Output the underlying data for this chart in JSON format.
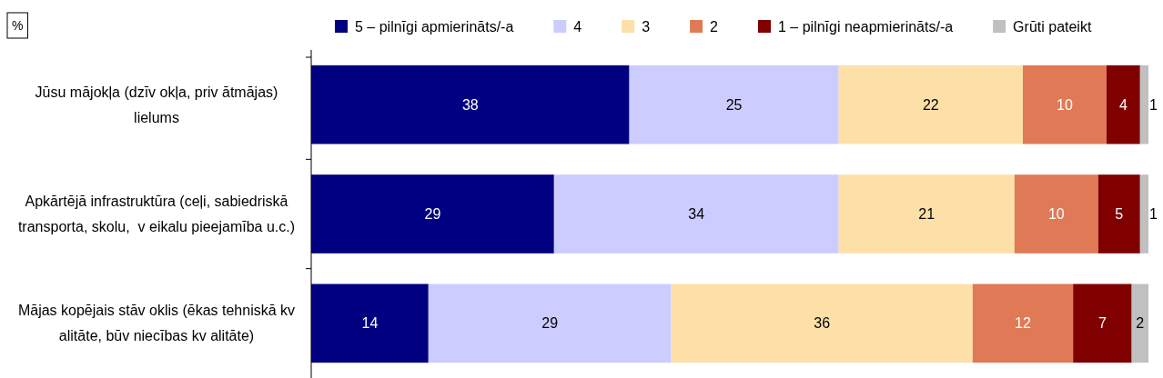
{
  "chart_data": {
    "type": "bar",
    "orientation": "horizontal",
    "stacked": true,
    "data_labels": true,
    "legend": "top",
    "annotations": [
      "%"
    ],
    "categories": [
      "Jūsu mājokļa (dzīv okļa, priv ātmājas) lielums",
      "Apkārtējā infrastruktūra (ceļi, sabiedriskā transporta, skolu,  v eikalu pieejamība u.c.)",
      "Mājas kopējais stāv oklis (ēkas tehniskā kv alitāte, būv niecības kv alitāte)"
    ],
    "series": [
      {
        "name": "5 – pilnīgi apmierināts/-a",
        "color": "#000080",
        "values": [
          38,
          29,
          14
        ]
      },
      {
        "name": "4",
        "color": "#ccccff",
        "values": [
          25,
          34,
          29
        ]
      },
      {
        "name": "3",
        "color": "#fde0a8",
        "values": [
          22,
          21,
          36
        ]
      },
      {
        "name": "2",
        "color": "#e07a56",
        "values": [
          10,
          10,
          12
        ]
      },
      {
        "name": "1 – pilnīgi neapmierināts/-a",
        "color": "#800000",
        "values": [
          4,
          5,
          7
        ]
      },
      {
        "name": "Grūti pateikt",
        "color": "#c0c0c0",
        "values": [
          1,
          1,
          2
        ]
      }
    ]
  }
}
